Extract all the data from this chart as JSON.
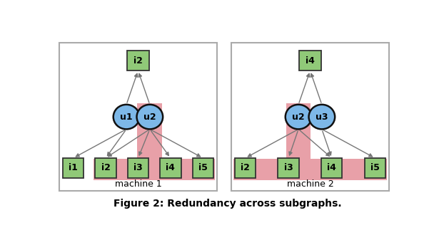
{
  "fig_width": 6.22,
  "fig_height": 3.3,
  "dpi": 100,
  "background": "#ffffff",
  "panel_edge_color": "#aaaaaa",
  "item_box_color": "#90c978",
  "item_box_edge": "#333333",
  "user_circle_color": "#7db8e8",
  "user_circle_edge": "#111111",
  "highlight_color": "#e8a0a8",
  "arrow_color": "#777777",
  "caption": "Figure 2: Redundancy across subgraphs.",
  "machine1_label": "machine 1",
  "machine2_label": "machine 2",
  "machine1": {
    "top_item": "i2",
    "users": [
      "u1",
      "u2"
    ],
    "bottom_items": [
      "i1",
      "i2",
      "i3",
      "i4",
      "i5"
    ],
    "u1_connects_to": [
      0,
      1
    ],
    "u2_connects_to": [
      1,
      2,
      3,
      4
    ],
    "highlight_user_idx": 1,
    "highlight_items": [
      1,
      2,
      3,
      4
    ],
    "highlight_wide_items": [
      1,
      2,
      3,
      4
    ]
  },
  "machine2": {
    "top_item": "i4",
    "users": [
      "u2",
      "u3"
    ],
    "bottom_items": [
      "i2",
      "i3",
      "i4",
      "i5"
    ],
    "u2_connects_to": [
      0,
      1,
      2
    ],
    "u3_connects_to": [
      2,
      3
    ],
    "highlight_user_idx": 0,
    "highlight_items": [
      0,
      1,
      2,
      3
    ],
    "highlight_wide_items": [
      0,
      1,
      2,
      3
    ]
  }
}
